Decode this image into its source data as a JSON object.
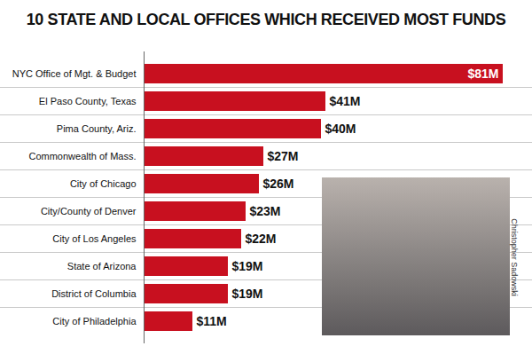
{
  "chart_data": {
    "type": "bar",
    "orientation": "horizontal",
    "title": "10 STATE AND LOCAL OFFICES WHICH RECEIVED MOST FUNDS",
    "categories": [
      "NYC Office of Mgt. & Budget",
      "El Paso County, Texas",
      "Pima County, Ariz.",
      "Commonwealth of Mass.",
      "City of Chicago",
      "City/County of Denver",
      "City of Los Angeles",
      "State of Arizona",
      "District of Columbia",
      "City of Philadelphia"
    ],
    "values": [
      81,
      41,
      40,
      27,
      26,
      23,
      22,
      19,
      19,
      11
    ],
    "value_labels": [
      "$81M",
      "$41M",
      "$40M",
      "$27M",
      "$26M",
      "$23M",
      "$22M",
      "$19M",
      "$19M",
      "$11M"
    ],
    "data_labels": true,
    "color": "#c8101f",
    "xlim": [
      0,
      81
    ],
    "tick_labels": "y",
    "annotations": [
      "Christopher Sadowski"
    ]
  }
}
